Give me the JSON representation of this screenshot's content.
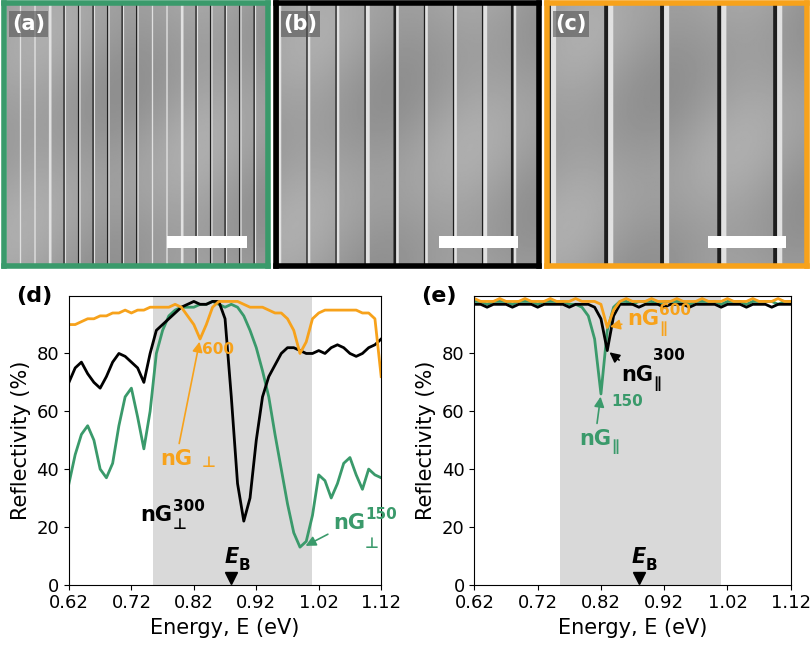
{
  "images": [
    {
      "label": "(a)",
      "color": "#3a9a6b"
    },
    {
      "label": "(b)",
      "color": "#000000"
    },
    {
      "label": "(c)",
      "color": "#f7a21b"
    }
  ],
  "chart_data": [
    {
      "type": "line",
      "panel_label": "(d)",
      "xlabel": "Energy, E (eV)",
      "ylabel": "Reflectivity (%)",
      "xlim": [
        0.62,
        1.12
      ],
      "xticks": [
        0.62,
        0.72,
        0.82,
        0.92,
        1.02,
        1.12
      ],
      "ylim": [
        0,
        100
      ],
      "yticks": [
        0,
        20,
        40,
        60,
        80
      ],
      "shaded_range": [
        0.755,
        1.01
      ],
      "marker_label": {
        "text": "E",
        "subscript": "B",
        "x": 0.88
      },
      "x": [
        0.62,
        0.63,
        0.64,
        0.65,
        0.66,
        0.67,
        0.68,
        0.69,
        0.7,
        0.71,
        0.72,
        0.73,
        0.74,
        0.75,
        0.76,
        0.77,
        0.78,
        0.79,
        0.8,
        0.81,
        0.82,
        0.83,
        0.84,
        0.85,
        0.86,
        0.87,
        0.88,
        0.89,
        0.9,
        0.91,
        0.92,
        0.93,
        0.94,
        0.95,
        0.96,
        0.97,
        0.98,
        0.99,
        1.0,
        1.01,
        1.02,
        1.03,
        1.04,
        1.05,
        1.06,
        1.07,
        1.08,
        1.09,
        1.1,
        1.11,
        1.12
      ],
      "series": [
        {
          "color": "#3a9a6b",
          "values": [
            35,
            45,
            52,
            55,
            50,
            40,
            37,
            42,
            55,
            65,
            68,
            58,
            47,
            60,
            80,
            88,
            93,
            95,
            96,
            96,
            96,
            97,
            97,
            98,
            97,
            96,
            97,
            96,
            93,
            88,
            82,
            74,
            65,
            52,
            40,
            28,
            18,
            13,
            15,
            24,
            38,
            36,
            30,
            35,
            42,
            44,
            38,
            33,
            40,
            38,
            37
          ]
        },
        {
          "color": "#000000",
          "values": [
            70,
            75,
            77,
            73,
            70,
            68,
            72,
            77,
            80,
            79,
            77,
            75,
            70,
            80,
            88,
            90,
            92,
            94,
            96,
            97,
            98,
            97,
            97,
            98,
            98,
            92,
            65,
            35,
            22,
            30,
            50,
            65,
            72,
            76,
            80,
            82,
            82,
            81,
            80,
            80,
            81,
            80,
            82,
            83,
            82,
            80,
            79,
            80,
            82,
            83,
            85
          ]
        },
        {
          "color": "#f7a21b",
          "values": [
            90,
            90,
            91,
            92,
            92,
            93,
            93,
            94,
            94,
            95,
            94,
            95,
            95,
            96,
            96,
            96,
            96,
            97,
            96,
            93,
            90,
            85,
            90,
            96,
            98,
            98,
            98,
            98,
            97,
            96,
            96,
            96,
            95,
            94,
            94,
            92,
            88,
            80,
            84,
            92,
            94,
            95,
            95,
            95,
            95,
            95,
            95,
            94,
            94,
            92,
            72
          ]
        }
      ],
      "annotations": [
        {
          "text": "nG",
          "subscript": "⊥",
          "superscript": "600",
          "color": "#f7a21b",
          "xy": [
            0.83,
            85
          ],
          "arrow": true
        },
        {
          "text": "nG",
          "subscript": "⊥",
          "superscript": "300",
          "color": "#000000",
          "xy": [
            0.735,
            24
          ],
          "arrow": false
        },
        {
          "text": "nG",
          "subscript": "⊥",
          "superscript": "150",
          "color": "#3a9a6b",
          "xy": [
            0.995,
            13
          ],
          "arrow": true
        }
      ]
    },
    {
      "type": "line",
      "panel_label": "(e)",
      "xlabel": "Energy, E (eV)",
      "ylabel": "Reflectivity (%)",
      "xlim": [
        0.62,
        1.12
      ],
      "xticks": [
        0.62,
        0.72,
        0.82,
        0.92,
        1.02,
        1.12
      ],
      "ylim": [
        0,
        100
      ],
      "yticks": [
        0,
        20,
        40,
        60,
        80
      ],
      "shaded_range": [
        0.755,
        1.01
      ],
      "marker_label": {
        "text": "E",
        "subscript": "B",
        "x": 0.88
      },
      "x": [
        0.62,
        0.63,
        0.64,
        0.65,
        0.66,
        0.67,
        0.68,
        0.69,
        0.7,
        0.71,
        0.72,
        0.73,
        0.74,
        0.75,
        0.76,
        0.77,
        0.78,
        0.79,
        0.8,
        0.81,
        0.82,
        0.83,
        0.84,
        0.85,
        0.86,
        0.87,
        0.88,
        0.89,
        0.9,
        0.91,
        0.92,
        0.93,
        0.94,
        0.95,
        0.96,
        0.97,
        0.98,
        0.99,
        1.0,
        1.01,
        1.02,
        1.03,
        1.04,
        1.05,
        1.06,
        1.07,
        1.08,
        1.09,
        1.1,
        1.11,
        1.12
      ],
      "series": [
        {
          "color": "#3a9a6b",
          "values": [
            98,
            98,
            97,
            98,
            98,
            98,
            97,
            98,
            98,
            98,
            97,
            98,
            98,
            98,
            98,
            97,
            97,
            96,
            93,
            85,
            66,
            88,
            96,
            98,
            98,
            97,
            98,
            98,
            98,
            97,
            98,
            98,
            98,
            98,
            97,
            98,
            98,
            98,
            98,
            97,
            98,
            98,
            98,
            97,
            98,
            98,
            98,
            98,
            97,
            98,
            98
          ]
        },
        {
          "color": "#000000",
          "values": [
            97,
            97,
            96,
            97,
            97,
            97,
            96,
            97,
            97,
            97,
            96,
            97,
            97,
            97,
            97,
            96,
            97,
            97,
            97,
            96,
            92,
            81,
            93,
            97,
            97,
            97,
            96,
            97,
            97,
            97,
            96,
            97,
            97,
            97,
            96,
            97,
            97,
            97,
            97,
            96,
            97,
            97,
            97,
            96,
            97,
            97,
            97,
            96,
            97,
            97,
            97
          ]
        },
        {
          "color": "#f7a21b",
          "values": [
            99,
            98,
            98,
            98,
            99,
            98,
            98,
            98,
            99,
            98,
            98,
            98,
            99,
            98,
            98,
            98,
            99,
            98,
            98,
            98,
            97,
            89,
            95,
            98,
            99,
            98,
            98,
            98,
            99,
            98,
            98,
            98,
            99,
            98,
            98,
            98,
            99,
            98,
            98,
            98,
            99,
            98,
            98,
            98,
            99,
            98,
            98,
            98,
            99,
            98,
            98
          ]
        }
      ],
      "annotations": [
        {
          "text": "nG",
          "subscript": "∥",
          "superscript": "600",
          "color": "#f7a21b",
          "xy": [
            0.83,
            89
          ],
          "arrow": true
        },
        {
          "text": "nG",
          "subscript": "∥",
          "superscript": "300",
          "color": "#000000",
          "xy": [
            0.83,
            81
          ],
          "arrow": true
        },
        {
          "text": "nG",
          "subscript": "∥",
          "superscript": "150",
          "color": "#3a9a6b",
          "xy": [
            0.82,
            66
          ],
          "arrow": true
        }
      ]
    }
  ]
}
